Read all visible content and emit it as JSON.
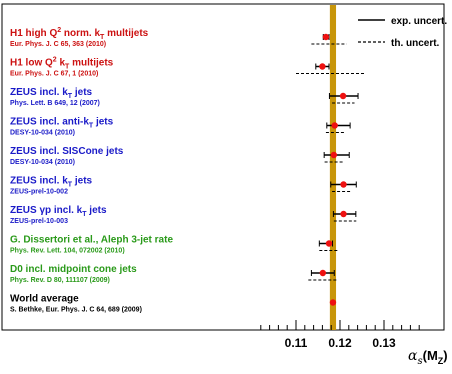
{
  "colors": {
    "band": "#c8960a",
    "red": "#cc1111",
    "blue": "#1a1ac8",
    "green": "#2a9a1a",
    "black": "#000000",
    "marker": "#ee1111"
  },
  "legend": {
    "exp": "exp. uncert.",
    "th": "th. uncert."
  },
  "axis": {
    "xlabel_main": "α",
    "xlabel_sub1": "s",
    "xlabel_paren_open": "(M",
    "xlabel_sub2": "Z",
    "xlabel_paren_close": ")",
    "ticks": [
      "0.11",
      "0.12",
      "0.13"
    ]
  },
  "chart_data": {
    "type": "scatter",
    "title": "",
    "xlabel": "αs(MZ)",
    "xlim": [
      0.1,
      0.14
    ],
    "x_ticks": [
      0.11,
      0.12,
      0.13
    ],
    "world_average": {
      "value": 0.1184,
      "uncertainty": 0.0007
    },
    "series": [
      {
        "name": "",
        "points": [
          {
            "title_pre": "H1 high Q",
            "title_sup": "2",
            "title_mid": " norm. k",
            "title_sub": "T",
            "title_post": " multijets",
            "ref": "Eur. Phys. J. C 65, 363 (2010)",
            "color": "red",
            "value": 0.1168,
            "exp_lo": 0.1162,
            "exp_hi": 0.1175,
            "th_lo": 0.1135,
            "th_hi": 0.1215
          },
          {
            "title_pre": "H1 low Q",
            "title_sup": "2",
            "title_mid": " k",
            "title_sub": "T",
            "title_post": " multijets",
            "ref": "Eur. Phys. J. C 67, 1 (2010)",
            "color": "red",
            "value": 0.116,
            "exp_lo": 0.1145,
            "exp_hi": 0.1175,
            "th_lo": 0.11,
            "th_hi": 0.1255
          },
          {
            "title_pre": "ZEUS incl. k",
            "title_sup": "",
            "title_mid": "",
            "title_sub": "T",
            "title_post": " jets",
            "ref": "Phys. Lett. B 649, 12 (2007)",
            "color": "blue",
            "value": 0.1207,
            "exp_lo": 0.1176,
            "exp_hi": 0.1241,
            "th_lo": 0.1182,
            "th_hi": 0.1233
          },
          {
            "title_pre": "ZEUS incl. anti-k",
            "title_sup": "",
            "title_mid": "",
            "title_sub": "T",
            "title_post": " jets",
            "ref": "DESY-10-034 (2010)",
            "color": "blue",
            "value": 0.1188,
            "exp_lo": 0.117,
            "exp_hi": 0.1223,
            "th_lo": 0.1168,
            "th_hi": 0.1213
          },
          {
            "title_pre": "ZEUS incl. SISCone jets",
            "title_sup": "",
            "title_mid": "",
            "title_sub": "",
            "title_post": "",
            "ref": "DESY-10-034 (2010)",
            "color": "blue",
            "value": 0.1186,
            "exp_lo": 0.1164,
            "exp_hi": 0.1221,
            "th_lo": 0.1165,
            "th_hi": 0.1206
          },
          {
            "title_pre": "ZEUS incl. k",
            "title_sup": "",
            "title_mid": "",
            "title_sub": "T",
            "title_post": " jets",
            "ref": "ZEUS-prel-10-002",
            "color": "blue",
            "value": 0.1208,
            "exp_lo": 0.1179,
            "exp_hi": 0.1237,
            "th_lo": 0.1182,
            "th_hi": 0.1226
          },
          {
            "title_pre": "ZEUS γp incl. k",
            "title_sup": "",
            "title_mid": "",
            "title_sub": "T",
            "title_post": " jets",
            "ref": "ZEUS-prel-10-003",
            "color": "blue",
            "value": 0.1208,
            "exp_lo": 0.1185,
            "exp_hi": 0.1236,
            "th_lo": 0.1186,
            "th_hi": 0.1237
          },
          {
            "title_pre": "G. Dissertori et al., Aleph 3-jet rate",
            "title_sup": "",
            "title_mid": "",
            "title_sub": "",
            "title_post": "",
            "ref": "Phys. Rev. Lett. 104, 072002 (2010)",
            "color": "green",
            "value": 0.1175,
            "exp_lo": 0.1153,
            "exp_hi": 0.1183,
            "th_lo": 0.1153,
            "th_hi": 0.1197
          },
          {
            "title_pre": "D0 incl. midpoint cone jets",
            "title_sup": "",
            "title_mid": "",
            "title_sub": "",
            "title_post": "",
            "ref": "Phys. Rev. D 80, 111107 (2009)",
            "color": "green",
            "value": 0.1161,
            "exp_lo": 0.1135,
            "exp_hi": 0.1187,
            "th_lo": 0.1128,
            "th_hi": 0.1195
          },
          {
            "title_pre": "World average",
            "title_sup": "",
            "title_mid": "",
            "title_sub": "",
            "title_post": "",
            "ref": "S. Bethke, Eur. Phys. J. C 64, 689 (2009)",
            "color": "black",
            "value": 0.1184,
            "exp_lo": null,
            "exp_hi": null,
            "th_lo": null,
            "th_hi": null
          }
        ]
      }
    ],
    "legend_position": "top-right",
    "grid": false
  }
}
